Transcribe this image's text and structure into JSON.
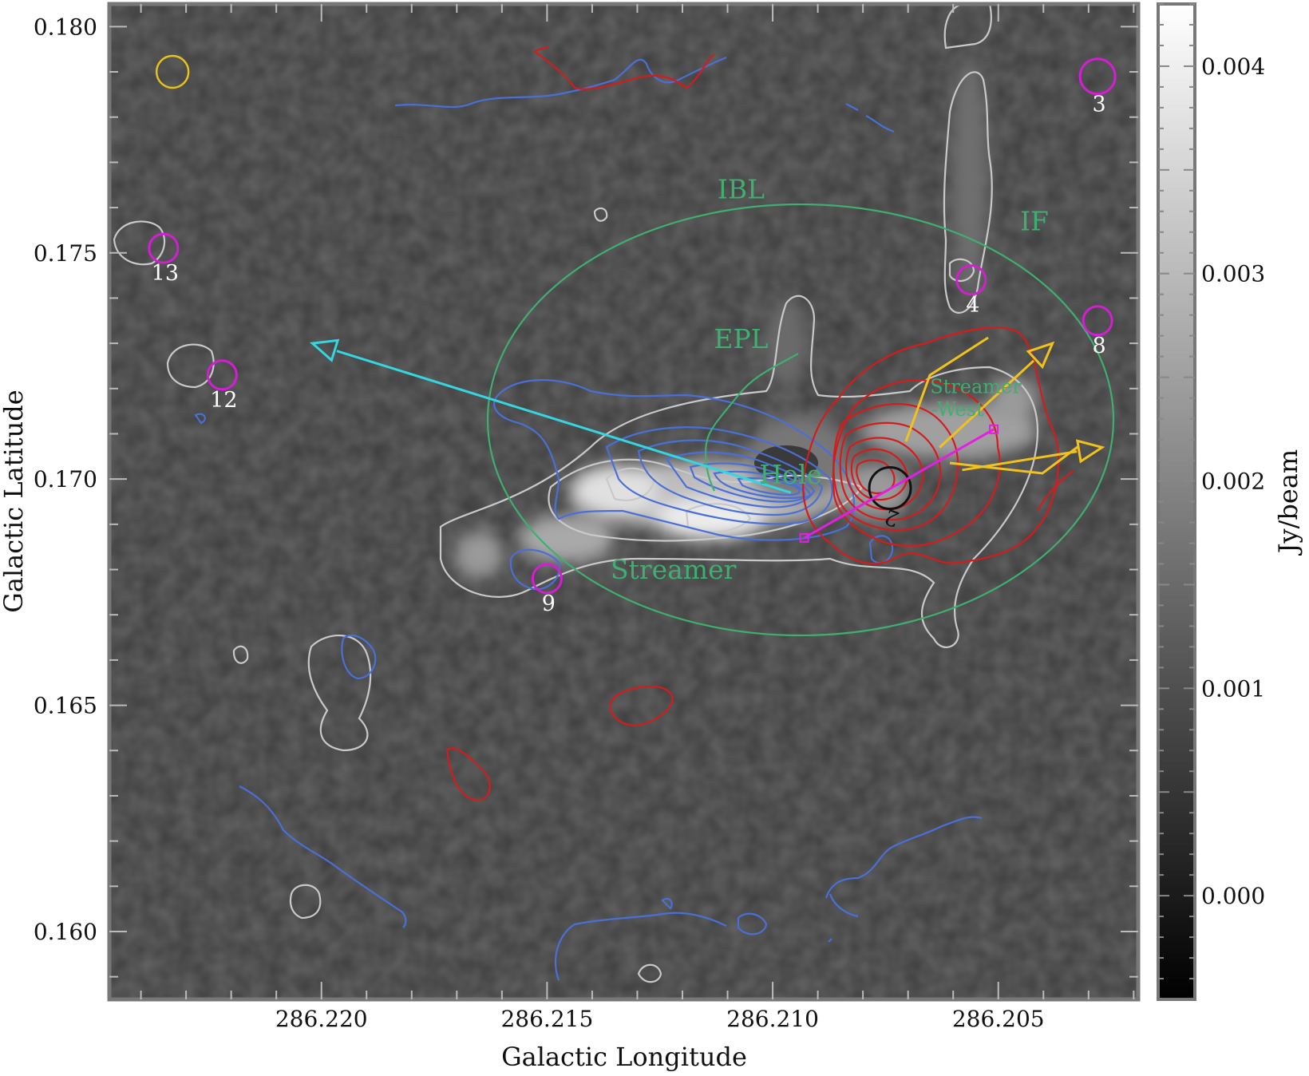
{
  "chart_data": {
    "type": "heatmap",
    "xlabel": "Galactic Longitude",
    "ylabel": "Galactic Latitude",
    "colorbar_label": "Jy/beam",
    "x_ticks": [
      {
        "value": 286.22,
        "label": "286.220"
      },
      {
        "value": 286.215,
        "label": "286.215"
      },
      {
        "value": 286.21,
        "label": "286.210"
      },
      {
        "value": 286.205,
        "label": "286.205"
      }
    ],
    "y_ticks": [
      {
        "value": 0.18,
        "label": "0.180"
      },
      {
        "value": 0.175,
        "label": "0.175"
      },
      {
        "value": 0.17,
        "label": "0.170"
      },
      {
        "value": 0.165,
        "label": "0.165"
      },
      {
        "value": 0.16,
        "label": "0.160"
      }
    ],
    "colorbar_ticks": [
      {
        "value": 0.004,
        "label": "0.004"
      },
      {
        "value": 0.003,
        "label": "0.003"
      },
      {
        "value": 0.002,
        "label": "0.002"
      },
      {
        "value": 0.001,
        "label": "0.001"
      },
      {
        "value": 0.0,
        "label": "0.000"
      }
    ],
    "xlim": [
      286.2247,
      286.2019
    ],
    "ylim": [
      0.1585,
      0.1805
    ],
    "colorbar_range": [
      -0.0005,
      0.0043
    ],
    "colormap": "grayscale",
    "region_labels": [
      {
        "text": "IBL",
        "l": 286.2107,
        "b": 0.1762,
        "color": "#3fae72"
      },
      {
        "text": "IF",
        "l": 286.2042,
        "b": 0.1755,
        "color": "#3fae72"
      },
      {
        "text": "EPL",
        "l": 286.2107,
        "b": 0.1729,
        "color": "#3fae72"
      },
      {
        "text": "Streamer",
        "l": 286.2055,
        "b": 0.1719,
        "color": "#3fae72"
      },
      {
        "text": "-West",
        "l": 286.2059,
        "b": 0.1714,
        "color": "#3fae72"
      },
      {
        "text": "Hole",
        "l": 286.2096,
        "b": 0.1699,
        "color": "#3fae72"
      },
      {
        "text": "Streamer",
        "l": 286.2122,
        "b": 0.1678,
        "color": "#3fae72"
      }
    ],
    "sources": [
      {
        "id": "3",
        "l": 286.2028,
        "b": 0.1789,
        "color": "#d11fd1"
      },
      {
        "id": "4",
        "l": 286.2056,
        "b": 0.1744,
        "color": "#d11fd1"
      },
      {
        "id": "8",
        "l": 286.2028,
        "b": 0.1735,
        "color": "#d11fd1"
      },
      {
        "id": "12",
        "l": 286.2222,
        "b": 0.1723,
        "color": "#d11fd1"
      },
      {
        "id": "13",
        "l": 286.2235,
        "b": 0.1751,
        "color": "#d11fd1"
      },
      {
        "id": "9",
        "l": 286.215,
        "b": 0.1678,
        "color": "#d11fd1"
      },
      {
        "id": "2",
        "l": 286.2074,
        "b": 0.1698,
        "color": "#111111"
      }
    ],
    "beam_marker": {
      "l": 286.2233,
      "b": 0.179,
      "color": "#e6c21a"
    },
    "ellipse_IBL": {
      "l": 286.2095,
      "b": 0.1713,
      "color": "#3fae72"
    },
    "arrows": [
      {
        "name": "outflow-axis-cyan",
        "from": [
          286.2096,
          0.1697
        ],
        "to": [
          286.2202,
          0.173
        ],
        "color": "#35d6e0"
      },
      {
        "name": "outflow-yellow-north",
        "from": [
          286.2063,
          0.1707
        ],
        "to": [
          286.2038,
          0.173
        ],
        "color": "#f2c21c"
      },
      {
        "name": "outflow-yellow-south",
        "from": [
          286.2058,
          0.1702
        ],
        "to": [
          286.2027,
          0.1707
        ],
        "color": "#f2c21c"
      },
      {
        "name": "pv-cut-magenta",
        "from": [
          286.2093,
          0.1687
        ],
        "to": [
          286.2051,
          0.1711
        ],
        "color": "#e21fe2"
      }
    ],
    "contour_colors": {
      "continuum": "#c9c9c9",
      "blueshifted": "#4a6fd6",
      "redshifted": "#d41c1c"
    }
  }
}
